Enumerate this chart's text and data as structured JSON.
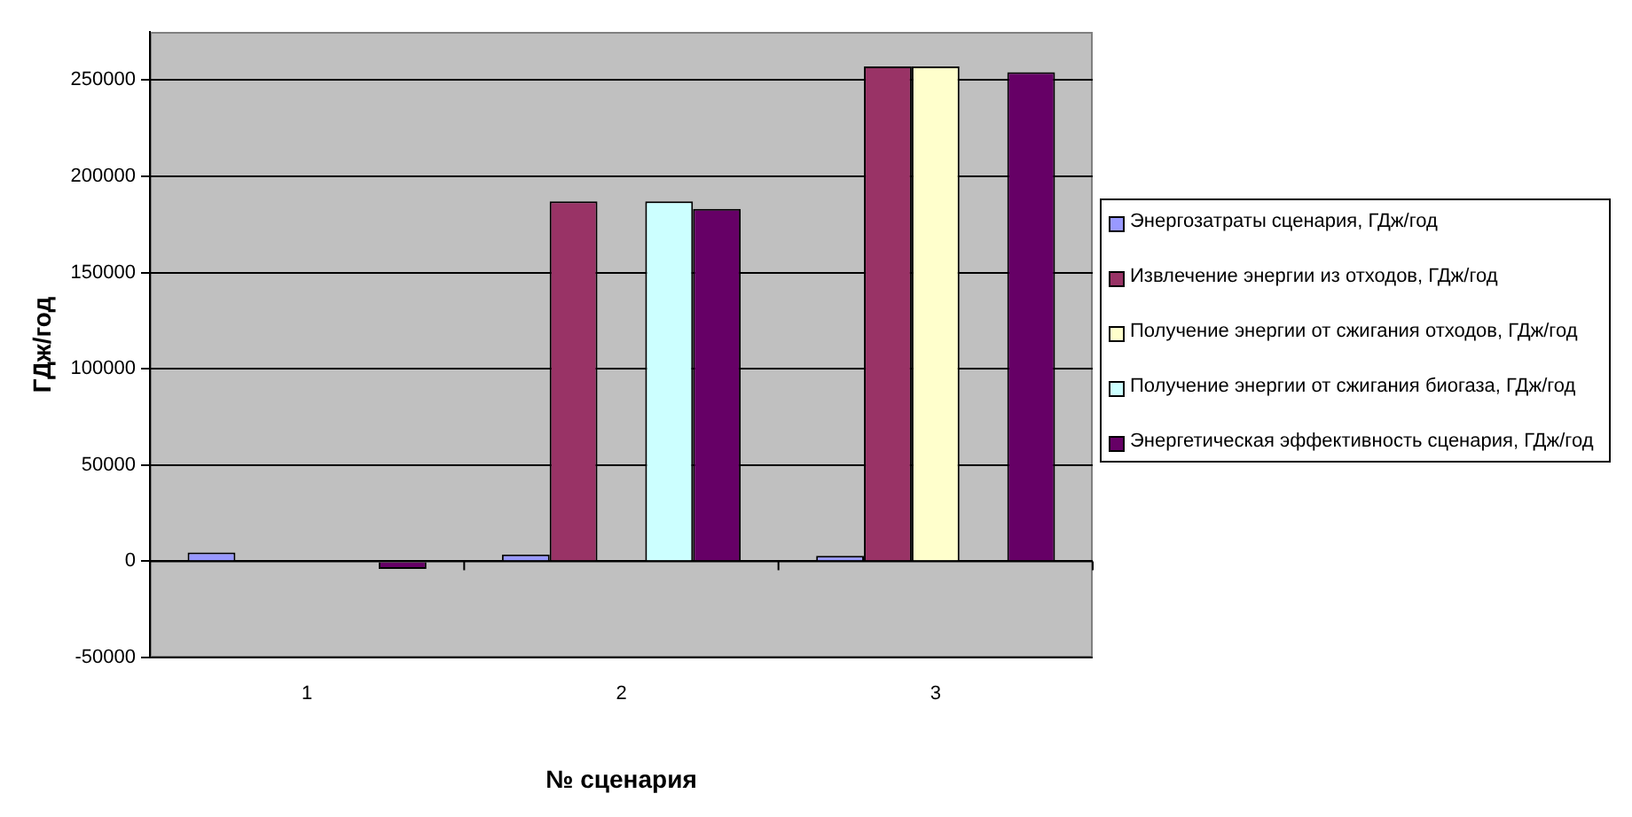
{
  "chart_data": {
    "type": "bar",
    "xlabel": "№ сценария",
    "ylabel": "ГДж/год",
    "categories": [
      "1",
      "2",
      "3"
    ],
    "series": [
      {
        "name": "Энергозатраты сценария, ГДж/год",
        "color": "#9999ff",
        "values": [
          4500,
          3500,
          2800
        ]
      },
      {
        "name": "Извлечение энергии из отходов, ГДж/год",
        "color": "#993366",
        "values": [
          null,
          187000,
          257000
        ]
      },
      {
        "name": "Получение энергии от сжигания отходов, ГДж/год",
        "color": "#ffffcc",
        "values": [
          null,
          null,
          257000
        ]
      },
      {
        "name": "Получение энергии от сжигания биогаза, ГДж/год",
        "color": "#ccffff",
        "values": [
          null,
          187000,
          null
        ]
      },
      {
        "name": "Энергетическая эффективность сценария, ГДж/год",
        "color": "#660066",
        "values": [
          -4000,
          183000,
          254000
        ]
      }
    ],
    "ylim": [
      -50000,
      275000
    ],
    "yticks": [
      -50000,
      0,
      50000,
      100000,
      150000,
      200000,
      250000
    ],
    "grid": "y",
    "legend": "right"
  }
}
